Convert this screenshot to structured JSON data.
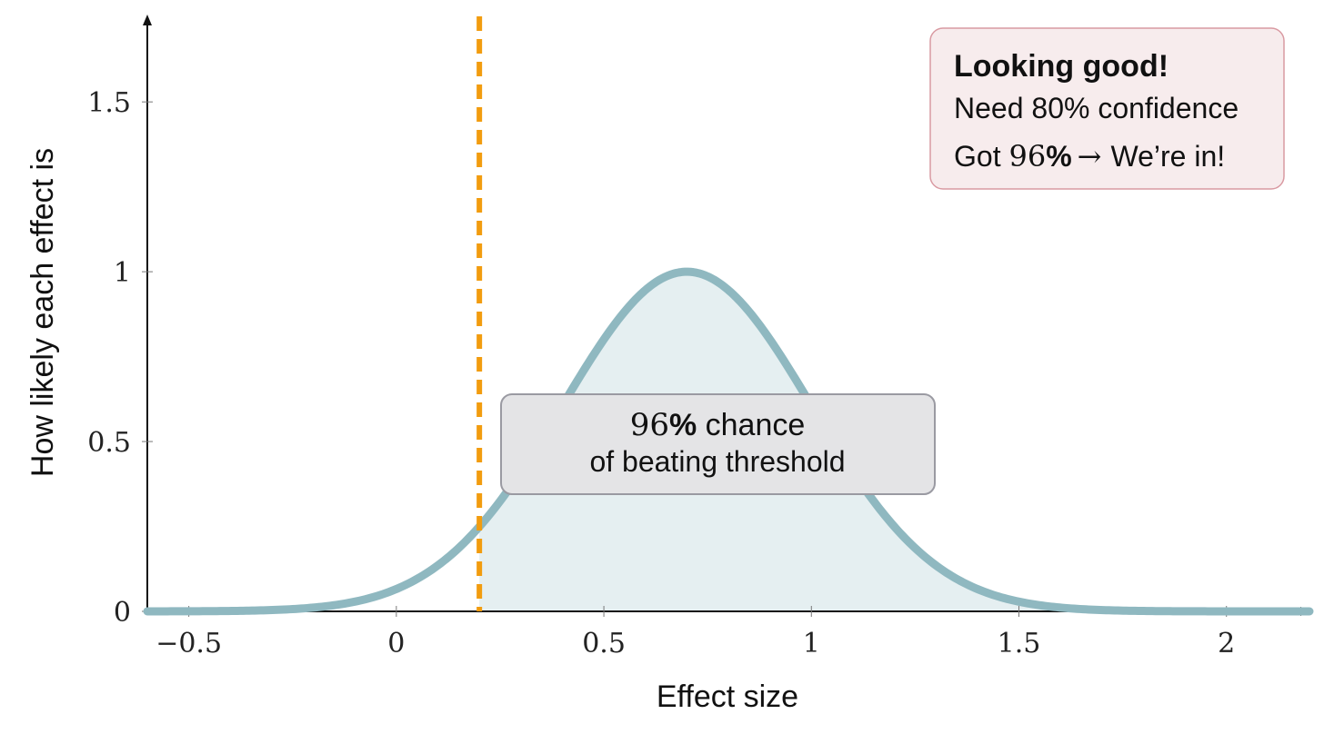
{
  "chart_data": {
    "type": "area",
    "xlabel": "Effect size",
    "ylabel": "How likely each effect is",
    "xlim": [
      -0.6,
      2.2
    ],
    "ylim": [
      0,
      1.8
    ],
    "x_ticks": [
      -0.5,
      0,
      0.5,
      1,
      1.5,
      2
    ],
    "x_tick_labels": [
      "−0.5",
      "0",
      "0.5",
      "1",
      "1.5",
      "2"
    ],
    "y_ticks": [
      0,
      0.5,
      1,
      1.5
    ],
    "y_tick_labels": [
      "0",
      "0.5",
      "1",
      "1.5"
    ],
    "grid": false,
    "series": [
      {
        "type": "line",
        "curve": "normal",
        "mean": 0.7,
        "sd": 0.3,
        "peak": 1.0,
        "color": "#8fb8c0",
        "fill_color": "#e5eff1",
        "shade_from": 0.2
      }
    ],
    "threshold": {
      "x": 0.2,
      "color": "#f29c0f",
      "style": "dashed"
    },
    "annotations": {
      "center_box": {
        "pct": "96",
        "pct_sign": "%",
        "line1_rest": " chance",
        "line2": "of beating threshold"
      },
      "corner_box": {
        "title": "Looking good!",
        "line1": "Need 80% confidence",
        "line2_prefix": "Got ",
        "line2_num": "96",
        "line2_pct": "%",
        "line2_arrow": "→",
        "line2_suffix": "We’re in!"
      }
    }
  },
  "colors": {
    "axis": "#111111",
    "center_box_fill": "#e4e4e6",
    "center_box_stroke": "#9a9aa2",
    "corner_box_fill": "#f7eced",
    "corner_box_stroke": "#d99aa2"
  }
}
